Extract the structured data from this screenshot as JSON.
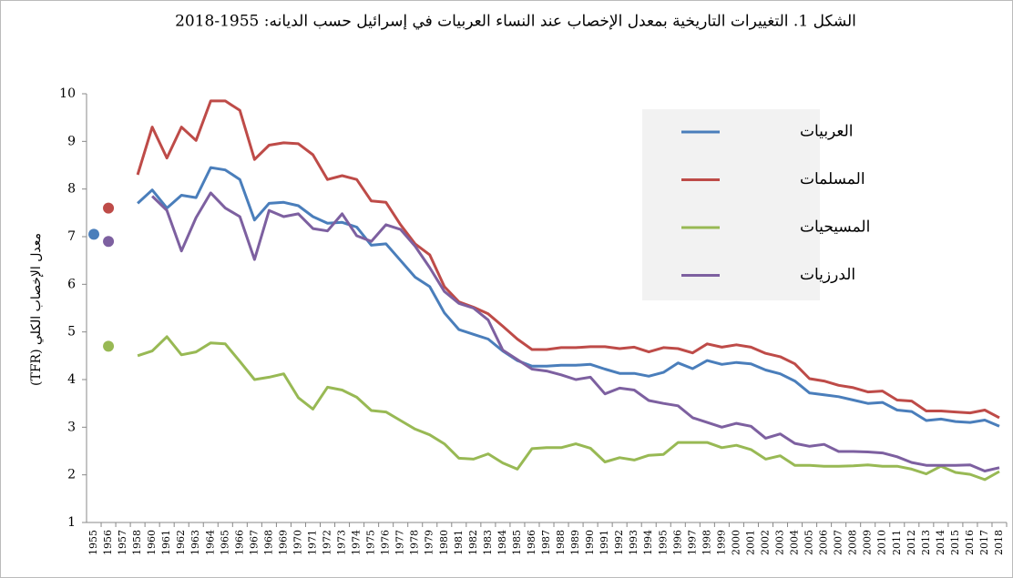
{
  "chart_data": {
    "type": "line",
    "title": "الشكل 1. التغييرات التاريخية بمعدل الإخصاب عند النساء العربيات في إسرائيل حسب الديانه: 1955-2018",
    "y_label": "معدل الإخصاب الكلي (TFR)",
    "categories": [
      "1955",
      "1956",
      "1957",
      "1958",
      "1960",
      "1961",
      "1962",
      "1963",
      "1964",
      "1965",
      "1966",
      "1967",
      "1968",
      "1969",
      "1970",
      "1971",
      "1972",
      "1973",
      "1974",
      "1975",
      "1976",
      "1977",
      "1978",
      "1979",
      "1980",
      "1981",
      "1982",
      "1983",
      "1984",
      "1985",
      "1986",
      "1987",
      "1988",
      "1989",
      "1990",
      "1991",
      "1992",
      "1993",
      "1994",
      "1995",
      "1996",
      "1997",
      "1998",
      "1999",
      "2000",
      "2001",
      "2002",
      "2003",
      "2004",
      "2005",
      "2006",
      "2007",
      "2008",
      "2009",
      "2010",
      "2011",
      "2012",
      "2013",
      "2014",
      "2015",
      "2016",
      "2017",
      "2018"
    ],
    "ylim": [
      1,
      10
    ],
    "yticks": [
      1,
      2,
      3,
      4,
      5,
      6,
      7,
      8,
      9,
      10
    ],
    "grid": false,
    "legend": "upper right",
    "series": [
      {
        "name": "العربيات",
        "color": "#4a7ebb",
        "values": [
          7.05,
          null,
          null,
          7.7,
          7.98,
          7.6,
          7.87,
          7.82,
          8.45,
          8.4,
          8.2,
          7.35,
          7.7,
          7.72,
          7.65,
          7.42,
          7.28,
          7.3,
          7.2,
          6.82,
          6.85,
          6.5,
          6.15,
          5.95,
          5.4,
          5.05,
          4.95,
          4.85,
          4.6,
          4.4,
          4.28,
          4.28,
          4.3,
          4.3,
          4.32,
          4.22,
          4.13,
          4.13,
          4.07,
          4.15,
          4.35,
          4.23,
          4.4,
          4.32,
          4.36,
          4.33,
          4.2,
          4.12,
          3.97,
          3.72,
          3.68,
          3.64,
          3.57,
          3.5,
          3.52,
          3.36,
          3.33,
          3.14,
          3.17,
          3.12,
          3.1,
          3.15,
          3.02
        ]
      },
      {
        "name": "المسلمات",
        "color": "#be4b48",
        "values": [
          null,
          7.6,
          null,
          8.3,
          9.3,
          8.65,
          9.3,
          9.02,
          9.85,
          9.85,
          9.65,
          8.62,
          8.92,
          8.97,
          8.95,
          8.72,
          8.2,
          8.28,
          8.2,
          7.75,
          7.72,
          7.25,
          6.85,
          6.62,
          5.95,
          5.63,
          5.52,
          5.38,
          5.12,
          4.85,
          4.63,
          4.63,
          4.67,
          4.67,
          4.69,
          4.69,
          4.65,
          4.68,
          4.58,
          4.67,
          4.65,
          4.56,
          4.75,
          4.68,
          4.73,
          4.68,
          4.55,
          4.48,
          4.33,
          4.02,
          3.97,
          3.88,
          3.83,
          3.74,
          3.76,
          3.57,
          3.55,
          3.34,
          3.34,
          3.32,
          3.3,
          3.36,
          3.2
        ]
      },
      {
        "name": "المسيحيات",
        "color": "#98b954",
        "values": [
          null,
          4.7,
          null,
          4.5,
          4.6,
          4.9,
          4.52,
          4.58,
          4.77,
          4.75,
          4.38,
          4.0,
          4.05,
          4.12,
          3.62,
          3.38,
          3.84,
          3.78,
          3.63,
          3.35,
          3.32,
          3.14,
          2.96,
          2.84,
          2.65,
          2.35,
          2.33,
          2.44,
          2.25,
          2.12,
          2.55,
          2.57,
          2.57,
          2.65,
          2.56,
          2.27,
          2.36,
          2.31,
          2.41,
          2.43,
          2.68,
          2.68,
          2.68,
          2.57,
          2.62,
          2.53,
          2.33,
          2.4,
          2.2,
          2.2,
          2.18,
          2.18,
          2.19,
          2.21,
          2.18,
          2.18,
          2.12,
          2.02,
          2.18,
          2.05,
          2.01,
          1.9,
          2.07
        ]
      },
      {
        "name": "الدرزيات",
        "color": "#7d60a0",
        "values": [
          null,
          6.9,
          null,
          null,
          7.85,
          7.55,
          6.7,
          7.4,
          7.92,
          7.6,
          7.42,
          6.52,
          7.55,
          7.42,
          7.48,
          7.17,
          7.12,
          7.48,
          7.02,
          6.9,
          7.25,
          7.15,
          6.8,
          6.35,
          5.85,
          5.6,
          5.5,
          5.25,
          4.62,
          4.42,
          4.22,
          4.18,
          4.1,
          4.0,
          4.05,
          3.7,
          3.82,
          3.78,
          3.56,
          3.5,
          3.45,
          3.2,
          3.1,
          3.0,
          3.08,
          3.02,
          2.77,
          2.86,
          2.66,
          2.6,
          2.64,
          2.49,
          2.49,
          2.48,
          2.46,
          2.38,
          2.26,
          2.2,
          2.2,
          2.2,
          2.21,
          2.08,
          2.15
        ]
      }
    ]
  }
}
